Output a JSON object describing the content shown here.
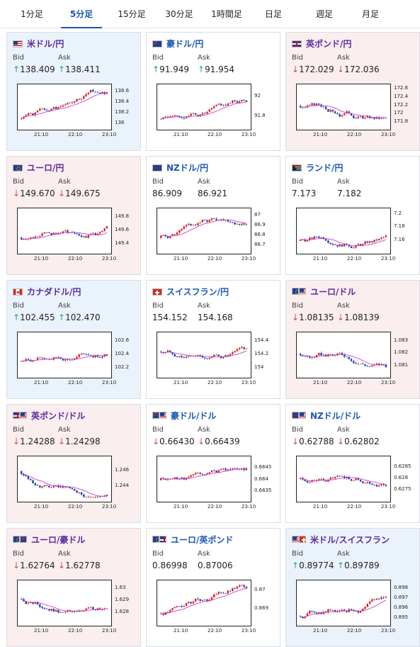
{
  "tabs": [
    "1分足",
    "5分足",
    "15分足",
    "30分足",
    "1時間足",
    "日足",
    "週足",
    "月足"
  ],
  "active_tab": "5分足",
  "labels": {
    "bid": "Bid",
    "ask": "Ask"
  },
  "colors": {
    "up_bg": "#eaf3fb",
    "down_bg": "#fbeeee",
    "candle_up": "#d62020",
    "candle_down": "#1a3ea8",
    "ma": "#c83ec8",
    "accent": "#1a56b5"
  },
  "cards": [
    {
      "name": "米ドル/円",
      "flags": [
        "us"
      ],
      "trend": "up",
      "bid": "138.409",
      "ask": "138.411",
      "arrow": "up",
      "chart_data": {
        "type": "candlestick",
        "x_ticks": [
          "21:10",
          "22:10",
          "23:10"
        ],
        "y_ticks": [
          "138.6",
          "138.4",
          "138.2",
          "138"
        ],
        "ylim": [
          137.95,
          138.7
        ],
        "series_seed": 1,
        "series_end": 138.41,
        "series_start": 138.1
      }
    },
    {
      "name": "豪ドル/円",
      "flags": [
        "au"
      ],
      "trend": "flat",
      "bid": "91.949",
      "ask": "91.954",
      "arrow": "up",
      "chart_data": {
        "type": "candlestick",
        "x_ticks": [
          "21:10",
          "22:10",
          "23:10"
        ],
        "y_ticks": [
          "92",
          "91.8"
        ],
        "ylim": [
          91.7,
          92.1
        ],
        "series_seed": 2,
        "series_end": 91.95,
        "series_start": 91.78
      }
    },
    {
      "name": "英ポンド/円",
      "flags": [
        "gb"
      ],
      "trend": "down",
      "bid": "172.029",
      "ask": "172.036",
      "arrow": "down",
      "chart_data": {
        "type": "candlestick",
        "x_ticks": [
          "21:10",
          "22:10",
          "23:10"
        ],
        "y_ticks": [
          "172.6",
          "172.4",
          "172.2",
          "172",
          "171.8"
        ],
        "ylim": [
          171.7,
          172.65
        ],
        "series_seed": 3,
        "series_end": 172.03,
        "series_start": 172.2
      }
    },
    {
      "name": "ユーロ/円",
      "flags": [
        "eu"
      ],
      "trend": "down",
      "bid": "149.670",
      "ask": "149.675",
      "arrow": "down",
      "chart_data": {
        "type": "candlestick",
        "x_ticks": [
          "21:10",
          "22:10",
          "23:10"
        ],
        "y_ticks": [
          "149.8",
          "149.6",
          "149.4"
        ],
        "ylim": [
          149.3,
          149.9
        ],
        "series_seed": 4,
        "series_end": 149.67,
        "series_start": 149.5
      }
    },
    {
      "name": "NZドル/円",
      "flags": [
        "nz"
      ],
      "trend": "flat",
      "bid": "86.909",
      "ask": "86.921",
      "arrow": "none",
      "chart_data": {
        "type": "candlestick",
        "x_ticks": [
          "21:10",
          "22:10",
          "23:10"
        ],
        "y_ticks": [
          "87",
          "86.9",
          "86.8",
          "86.7"
        ],
        "ylim": [
          86.65,
          87.05
        ],
        "series_seed": 5,
        "series_end": 86.91,
        "series_start": 86.78
      }
    },
    {
      "name": "ランド/円",
      "flags": [
        "za"
      ],
      "trend": "flat",
      "bid": "7.173",
      "ask": "7.182",
      "arrow": "none",
      "chart_data": {
        "type": "candlestick",
        "x_ticks": [
          "21:10",
          "22:10",
          "23:10"
        ],
        "y_ticks": [
          "7.2",
          "7.18",
          "7.16"
        ],
        "ylim": [
          7.145,
          7.205
        ],
        "series_seed": 6,
        "series_end": 7.175,
        "series_start": 7.16
      }
    },
    {
      "name": "カナダドル/円",
      "flags": [
        "ca"
      ],
      "trend": "up",
      "bid": "102.455",
      "ask": "102.470",
      "arrow": "up",
      "chart_data": {
        "type": "candlestick",
        "x_ticks": [
          "21:10",
          "22:10",
          "23:10"
        ],
        "y_ticks": [
          "102.6",
          "102.4",
          "102.2"
        ],
        "ylim": [
          102.1,
          102.7
        ],
        "series_seed": 7,
        "series_end": 102.46,
        "series_start": 102.3
      }
    },
    {
      "name": "スイスフラン/円",
      "flags": [
        "ch"
      ],
      "trend": "flat",
      "bid": "154.152",
      "ask": "154.168",
      "arrow": "none",
      "chart_data": {
        "type": "candlestick",
        "x_ticks": [
          "21:10",
          "22:10",
          "23:10"
        ],
        "y_ticks": [
          "154.4",
          "154.2",
          "154"
        ],
        "ylim": [
          153.9,
          154.5
        ],
        "series_seed": 8,
        "series_end": 154.15,
        "series_start": 154.25
      }
    },
    {
      "name": "ユーロ/ドル",
      "flags": [
        "eu",
        "us"
      ],
      "trend": "down",
      "bid": "1.08135",
      "ask": "1.08139",
      "arrow": "down",
      "chart_data": {
        "type": "candlestick",
        "x_ticks": [
          "21:10",
          "22:10",
          "23:10"
        ],
        "y_ticks": [
          "1.083",
          "1.082",
          "1.081"
        ],
        "ylim": [
          1.0803,
          1.0835
        ],
        "series_seed": 9,
        "series_end": 1.0813,
        "series_start": 1.082
      }
    },
    {
      "name": "英ポンド/ドル",
      "flags": [
        "gb",
        "us"
      ],
      "trend": "down",
      "bid": "1.24288",
      "ask": "1.24298",
      "arrow": "down",
      "chart_data": {
        "type": "candlestick",
        "x_ticks": [
          "21:10",
          "22:10",
          "23:10"
        ],
        "y_ticks": [
          "1.246",
          "1.244"
        ],
        "ylim": [
          1.2425,
          1.2475
        ],
        "series_seed": 10,
        "series_end": 1.2429,
        "series_start": 1.246
      }
    },
    {
      "name": "豪ドル/ドル",
      "flags": [
        "au",
        "us"
      ],
      "trend": "flat",
      "bid": "0.66430",
      "ask": "0.66439",
      "arrow": "down",
      "chart_data": {
        "type": "candlestick",
        "x_ticks": [
          "21:10",
          "22:10",
          "23:10"
        ],
        "y_ticks": [
          "0.6645",
          "0.664",
          "0.6635"
        ],
        "ylim": [
          0.6632,
          0.6649
        ],
        "series_seed": 11,
        "series_end": 0.6643,
        "series_start": 0.664
      }
    },
    {
      "name": "NZドル/ドル",
      "flags": [
        "nz",
        "us"
      ],
      "trend": "flat",
      "bid": "0.62788",
      "ask": "0.62802",
      "arrow": "down",
      "chart_data": {
        "type": "candlestick",
        "x_ticks": [
          "21:10",
          "22:10",
          "23:10"
        ],
        "y_ticks": [
          "0.6285",
          "0.628",
          "0.6275"
        ],
        "ylim": [
          0.6271,
          0.6289
        ],
        "series_seed": 12,
        "series_end": 0.6279,
        "series_start": 0.628
      }
    },
    {
      "name": "ユーロ/豪ドル",
      "flags": [
        "eu",
        "au"
      ],
      "trend": "down",
      "bid": "1.62764",
      "ask": "1.62778",
      "arrow": "down",
      "chart_data": {
        "type": "candlestick",
        "x_ticks": [
          "21:10",
          "22:10",
          "23:10"
        ],
        "y_ticks": [
          "1.63",
          "1.629",
          "1.628"
        ],
        "ylim": [
          1.6272,
          1.6305
        ],
        "series_seed": 13,
        "series_end": 1.6276,
        "series_start": 1.6292
      }
    },
    {
      "name": "ユーロ/英ポンド",
      "flags": [
        "eu",
        "gb"
      ],
      "trend": "flat",
      "bid": "0.86998",
      "ask": "0.87006",
      "arrow": "none",
      "chart_data": {
        "type": "candlestick",
        "x_ticks": [
          "21:10",
          "22:10",
          "23:10"
        ],
        "y_ticks": [
          "0.87",
          "0.869"
        ],
        "ylim": [
          0.8683,
          0.8704
        ],
        "series_seed": 14,
        "series_end": 0.87,
        "series_start": 0.8688
      }
    },
    {
      "name": "米ドル/スイスフラン",
      "flags": [
        "us",
        "ch"
      ],
      "trend": "up",
      "bid": "0.89774",
      "ask": "0.89789",
      "arrow": "up",
      "chart_data": {
        "type": "candlestick",
        "x_ticks": [
          "21:10",
          "22:10",
          "23:10"
        ],
        "y_ticks": [
          "0.898",
          "0.897",
          "0.896",
          "0.895"
        ],
        "ylim": [
          0.8946,
          0.8986
        ],
        "series_seed": 15,
        "series_end": 0.8977,
        "series_start": 0.8953
      }
    }
  ]
}
